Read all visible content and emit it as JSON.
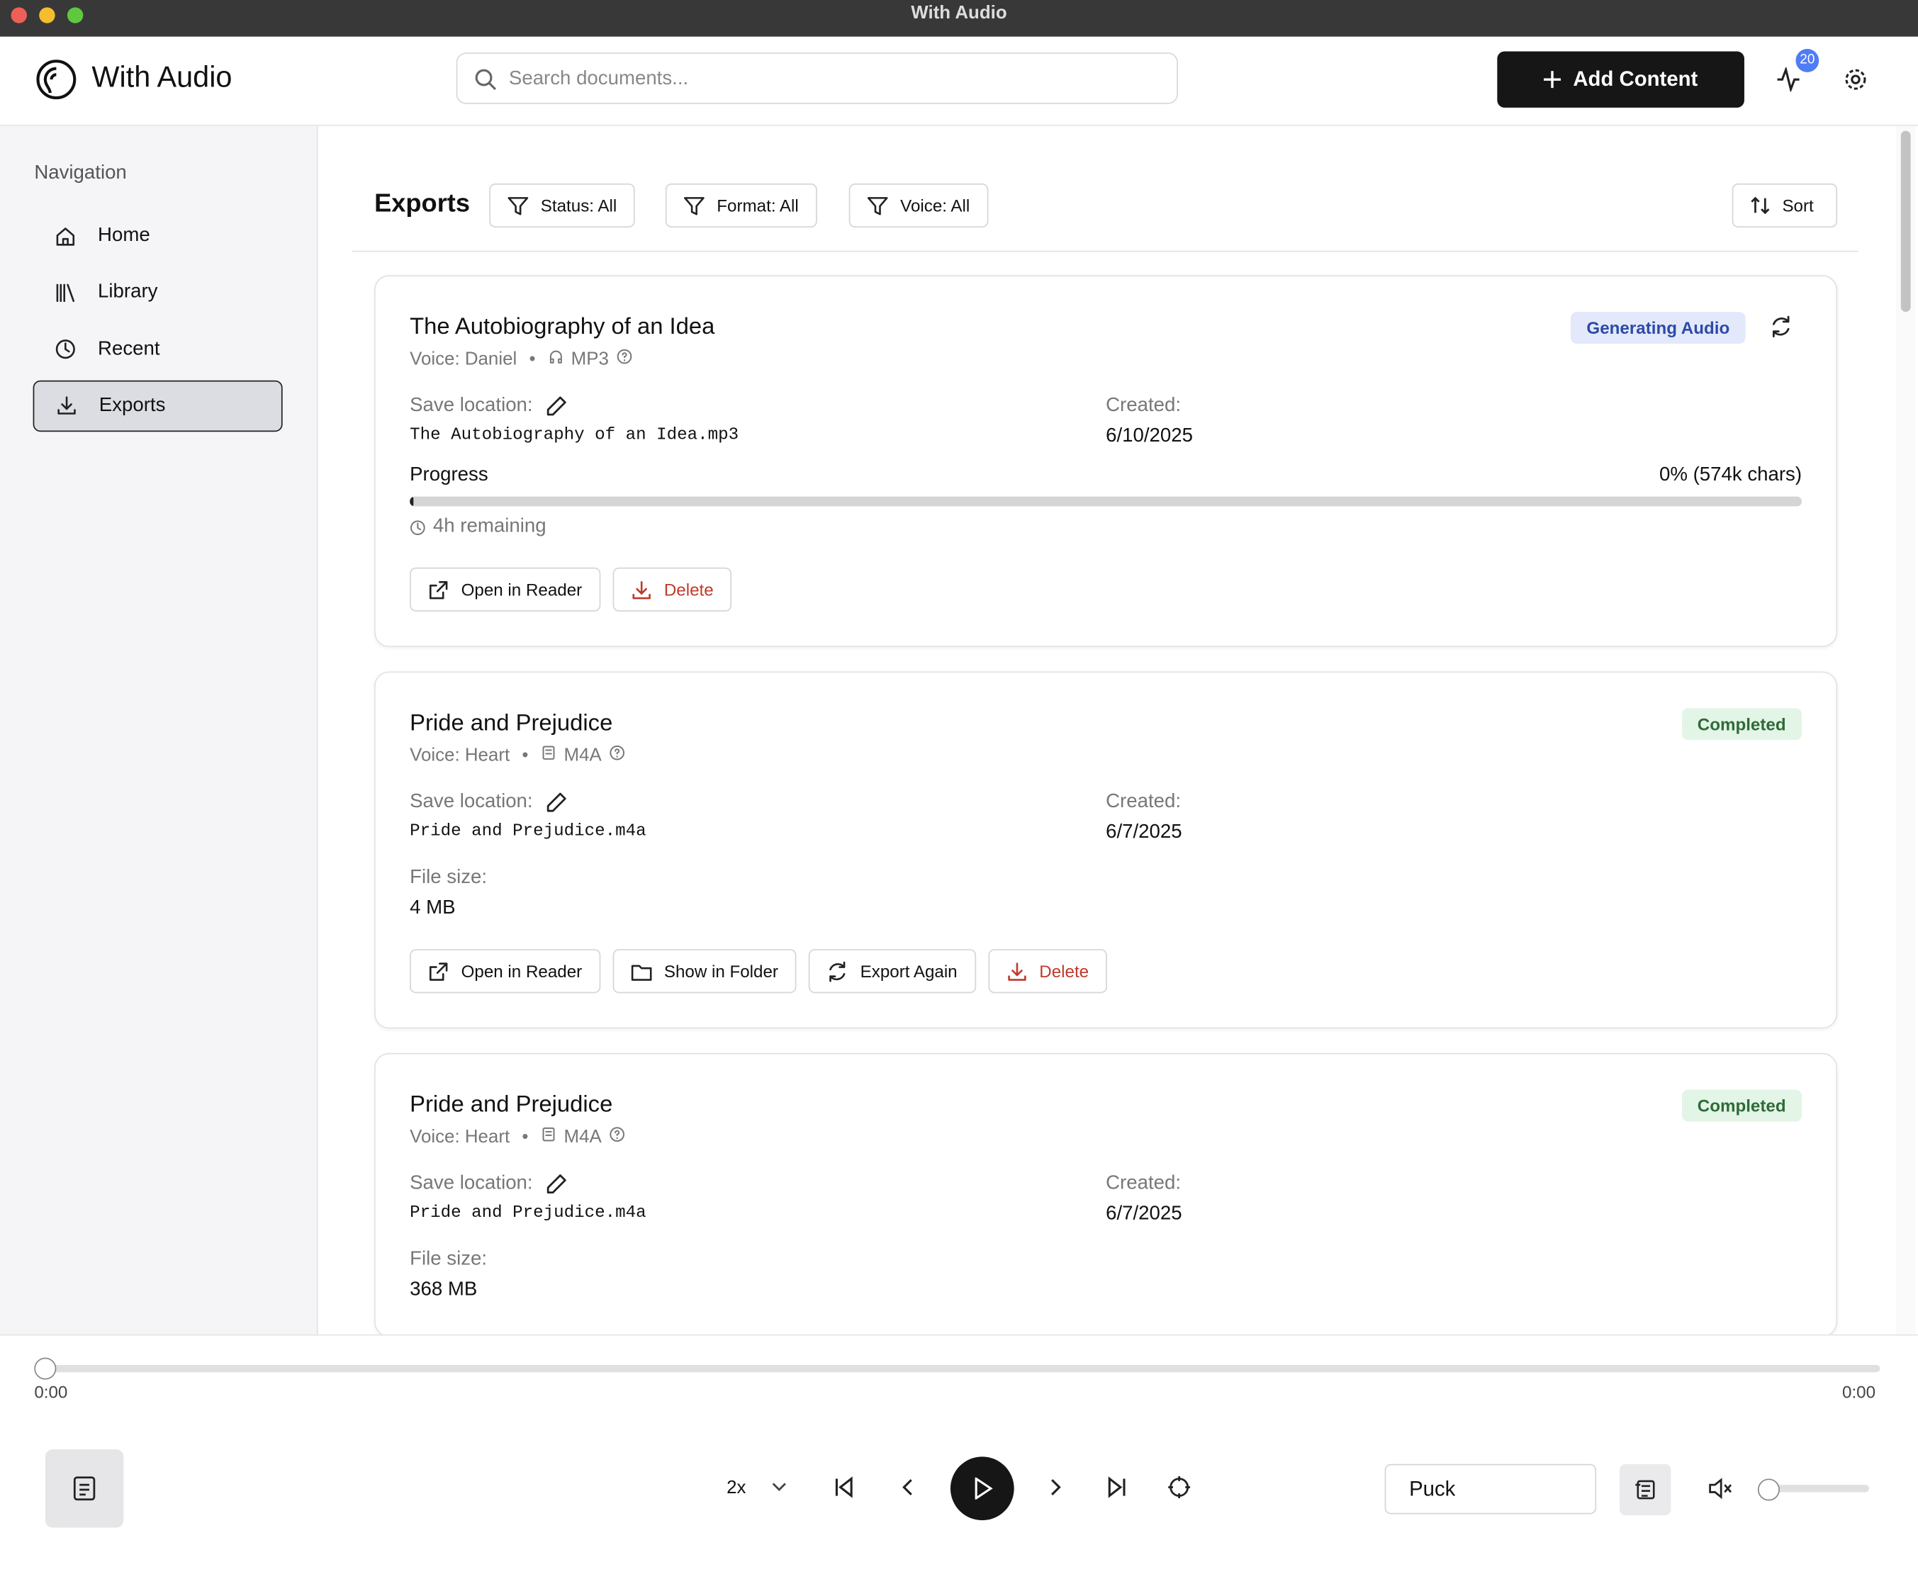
{
  "window_title": "With Audio",
  "header": {
    "app_name": "With Audio",
    "search_placeholder": "Search documents...",
    "add_button": "Add Content",
    "notification_count": "20"
  },
  "sidebar": {
    "heading": "Navigation",
    "items": [
      "Home",
      "Library",
      "Recent",
      "Exports"
    ],
    "active": 3
  },
  "page": {
    "title": "Exports",
    "filters": [
      "Status: All",
      "Format: All",
      "Voice: All"
    ],
    "sort": "Sort"
  },
  "exports": [
    {
      "title": "The Autobiography of an Idea",
      "voice": "Voice: Daniel",
      "format": "MP3",
      "status": "Generating Audio",
      "save_label": "Save location:",
      "filename": "The Autobiography of an Idea.mp3",
      "created_label": "Created:",
      "created": "6/10/2025",
      "progress_label": "Progress",
      "progress_text": "0% (574k chars)",
      "progress": 0,
      "remaining": "4h remaining",
      "actions": [
        "Open in Reader",
        "Delete"
      ]
    },
    {
      "title": "Pride and Prejudice",
      "voice": "Voice: Heart",
      "format": "M4A",
      "status": "Completed",
      "save_label": "Save location:",
      "filename": "Pride and Prejudice.m4a",
      "created_label": "Created:",
      "created": "6/7/2025",
      "size_label": "File size:",
      "size": "4 MB",
      "actions": [
        "Open in Reader",
        "Show in Folder",
        "Export Again",
        "Delete"
      ]
    },
    {
      "title": "Pride and Prejudice",
      "voice": "Voice: Heart",
      "format": "M4A",
      "status": "Completed",
      "save_label": "Save location:",
      "filename": "Pride and Prejudice.m4a",
      "created_label": "Created:",
      "created": "6/7/2025",
      "size_label": "File size:",
      "size": "368 MB"
    }
  ],
  "player": {
    "elapsed": "0:00",
    "duration": "0:00",
    "speed": "2x",
    "voice": "Puck"
  }
}
